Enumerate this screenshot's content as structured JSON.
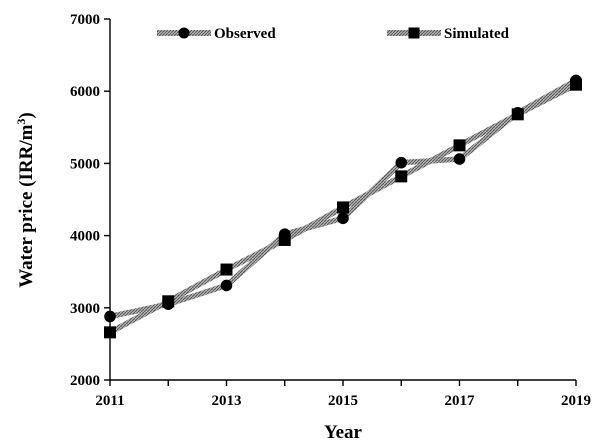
{
  "chart_data": {
    "type": "line",
    "xlabel": "Year",
    "ylabel_main": "Water price (IRR/m",
    "ylabel_sup": "3",
    "ylabel_close": ")",
    "xlim": [
      2011,
      2019
    ],
    "ylim": [
      2000,
      7000
    ],
    "x_ticks": [
      "2011",
      "2013",
      "2015",
      "2017",
      "2019"
    ],
    "y_ticks": [
      "2000",
      "3000",
      "4000",
      "5000",
      "6000",
      "7000"
    ],
    "grid": false,
    "legend_position": "top",
    "x": [
      2011,
      2012,
      2013,
      2014,
      2015,
      2016,
      2017,
      2018,
      2019
    ],
    "series": [
      {
        "name": "Observed",
        "marker": "circle",
        "color": "#000000",
        "line_color": "#8a8a8a",
        "values": [
          2880,
          3050,
          3310,
          4020,
          4240,
          5010,
          5060,
          5700,
          6150
        ]
      },
      {
        "name": "Simulated",
        "marker": "square",
        "color": "#000000",
        "line_color": "#8a8a8a",
        "values": [
          2660,
          3090,
          3530,
          3940,
          4390,
          4820,
          5250,
          5680,
          6090
        ]
      }
    ]
  }
}
